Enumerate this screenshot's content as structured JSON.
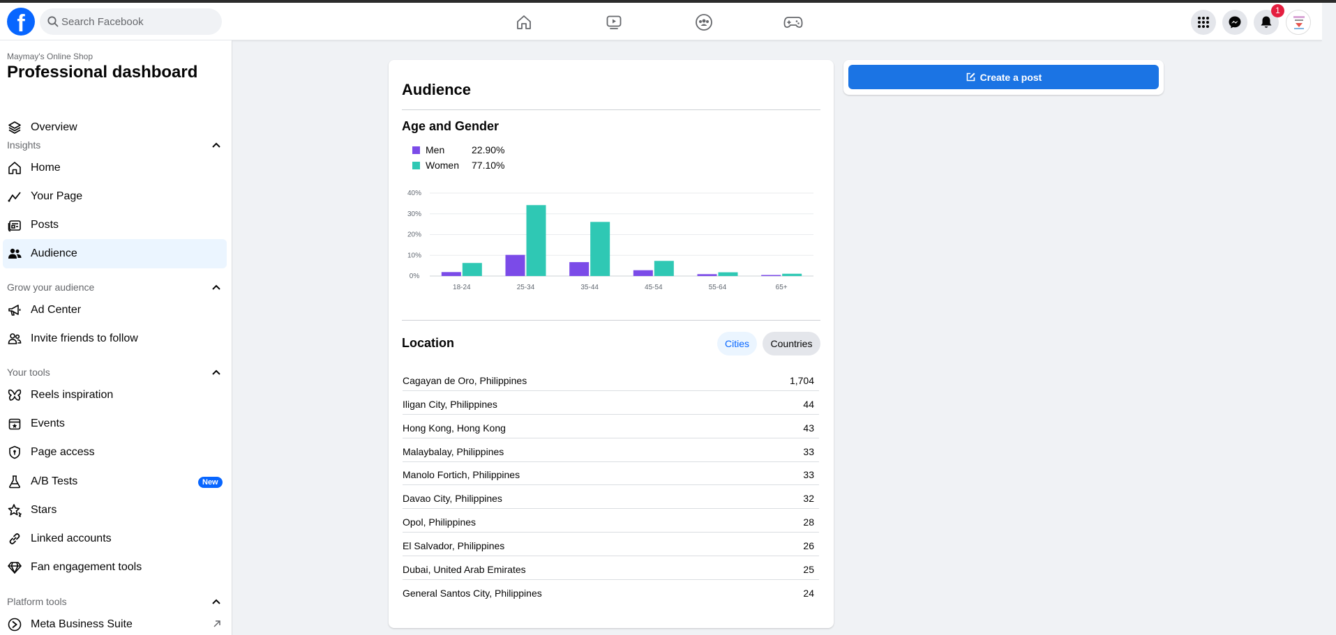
{
  "header": {
    "logo_icon": "facebook-logo",
    "search_placeholder": "Search Facebook",
    "nav_icons": [
      "home-icon",
      "video-icon",
      "groups-icon",
      "gaming-icon"
    ],
    "right_icons": [
      "menu-grid-icon",
      "messenger-icon",
      "bell-icon"
    ],
    "notification_count": "1"
  },
  "sidebar": {
    "shop_name": "Maymay's Online Shop",
    "title": "Professional dashboard",
    "overview": "Overview",
    "sections": {
      "insights": "Insights",
      "grow": "Grow your audience",
      "tools": "Your tools",
      "platform": "Platform tools"
    },
    "insights_items": [
      "Home",
      "Your Page",
      "Posts",
      "Audience"
    ],
    "grow_items": [
      "Ad Center",
      "Invite friends to follow"
    ],
    "tools_items": [
      "Reels inspiration",
      "Events",
      "Page access",
      "A/B Tests",
      "Stars",
      "Linked accounts",
      "Fan engagement tools"
    ],
    "platform_items": [
      "Meta Business Suite"
    ],
    "new_badge": "New",
    "active_item": "Audience"
  },
  "audience": {
    "title": "Audience",
    "age_gender_title": "Age and Gender",
    "legend": [
      {
        "name": "Men",
        "value": "22.90%",
        "color": "#7b4be8"
      },
      {
        "name": "Women",
        "value": "77.10%",
        "color": "#2fc8b4"
      }
    ],
    "location_title": "Location",
    "tabs": [
      "Cities",
      "Countries"
    ],
    "active_tab": "Cities",
    "locations": [
      {
        "name": "Cagayan de Oro, Philippines",
        "value": "1,704"
      },
      {
        "name": "Iligan City, Philippines",
        "value": "44"
      },
      {
        "name": "Hong Kong, Hong Kong",
        "value": "43"
      },
      {
        "name": "Malaybalay, Philippines",
        "value": "33"
      },
      {
        "name": "Manolo Fortich, Philippines",
        "value": "33"
      },
      {
        "name": "Davao City, Philippines",
        "value": "32"
      },
      {
        "name": "Opol, Philippines",
        "value": "28"
      },
      {
        "name": "El Salvador, Philippines",
        "value": "26"
      },
      {
        "name": "Dubai, United Arab Emirates",
        "value": "25"
      },
      {
        "name": "General Santos City, Philippines",
        "value": "24"
      }
    ]
  },
  "create_post": {
    "label": "Create a post"
  },
  "chart_data": {
    "type": "bar",
    "categories": [
      "18-24",
      "25-34",
      "35-44",
      "45-54",
      "55-64",
      "65+"
    ],
    "series": [
      {
        "name": "Men",
        "values": [
          1.9,
          10.2,
          6.7,
          2.8,
          0.9,
          0.5
        ],
        "color": "#7b4be8"
      },
      {
        "name": "Women",
        "values": [
          6.3,
          34.2,
          26.1,
          7.3,
          1.8,
          1.1
        ],
        "color": "#2fc8b4"
      }
    ],
    "yticks": [
      "0%",
      "10%",
      "20%",
      "30%",
      "40%"
    ],
    "ylim": [
      0,
      40
    ],
    "grid": true
  }
}
